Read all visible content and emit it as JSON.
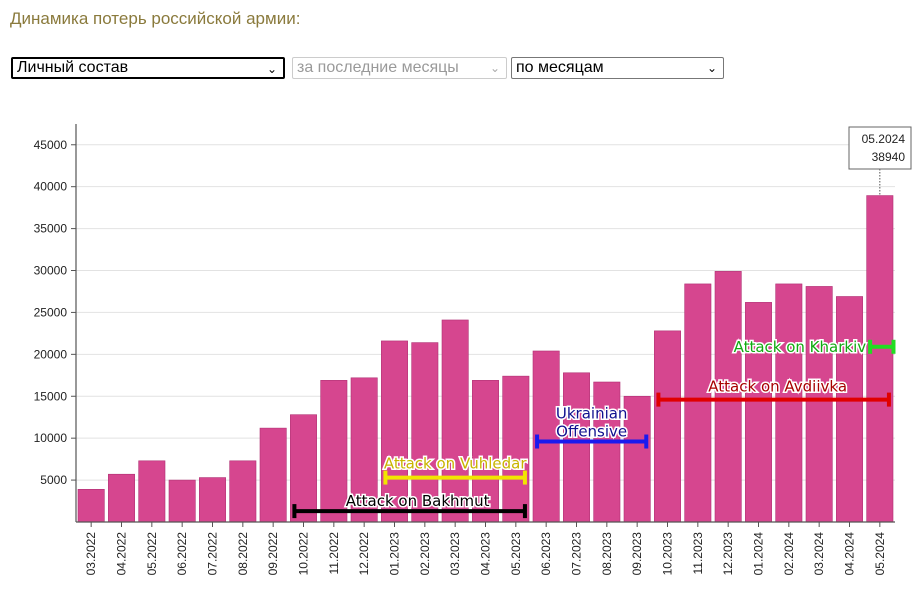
{
  "page": {
    "title": "Динамика потерь российской армии:"
  },
  "controls": {
    "metric": "Личный состав",
    "period": "за последние месяцы",
    "grouping": "по месяцам"
  },
  "colors": {
    "bar": "#d6468f",
    "bar_stroke": "#b02f73",
    "grid": "#e2e2e2",
    "title": "#8a7a3c"
  },
  "chart_data": {
    "type": "bar",
    "title": "",
    "xlabel": "",
    "ylabel": "",
    "ylim": [
      0,
      47000
    ],
    "yticks": [
      5000,
      10000,
      15000,
      20000,
      25000,
      30000,
      35000,
      40000,
      45000
    ],
    "grid": "horizontal",
    "categories": [
      "03.2022",
      "04.2022",
      "05.2022",
      "06.2022",
      "07.2022",
      "08.2022",
      "09.2022",
      "10.2022",
      "11.2022",
      "12.2022",
      "01.2023",
      "02.2023",
      "03.2023",
      "04.2023",
      "05.2023",
      "06.2023",
      "07.2023",
      "08.2023",
      "09.2023",
      "10.2023",
      "11.2023",
      "12.2023",
      "01.2024",
      "02.2024",
      "03.2024",
      "04.2024",
      "05.2024"
    ],
    "values": [
      3900,
      5700,
      7300,
      5000,
      5300,
      7300,
      11200,
      12800,
      16900,
      17200,
      21600,
      21400,
      24100,
      16900,
      17400,
      20400,
      17800,
      16700,
      15000,
      22800,
      28400,
      29900,
      26200,
      28400,
      28100,
      26900,
      38940
    ],
    "tooltip": {
      "category": "05.2024",
      "value": "38940"
    },
    "annotations": [
      {
        "label": "Attack on Bakhmut",
        "start": "10.2022",
        "end": "05.2023",
        "y": 1300,
        "color": "#000000",
        "text_color": "#000000"
      },
      {
        "label": "Attack on Vuhledar",
        "start": "01.2023",
        "end": "05.2023",
        "y": 5300,
        "color": "#f2e600",
        "text_color": "#c9b400"
      },
      {
        "label": "Ukrainian Offensive",
        "start": "06.2023",
        "end": "09.2023",
        "y": 9600,
        "color": "#1a1aee",
        "text_color": "#10108f"
      },
      {
        "label": "Attack on Avdiivka",
        "start": "10.2023",
        "end": "05.2024",
        "y": 14600,
        "color": "#e00000",
        "text_color": "#a80000"
      },
      {
        "label": "Attack on Kharkiv",
        "start": "05.2024",
        "end": "05.2024",
        "y": 20900,
        "color": "#22dd22",
        "text_color": "#11aa11"
      }
    ]
  }
}
